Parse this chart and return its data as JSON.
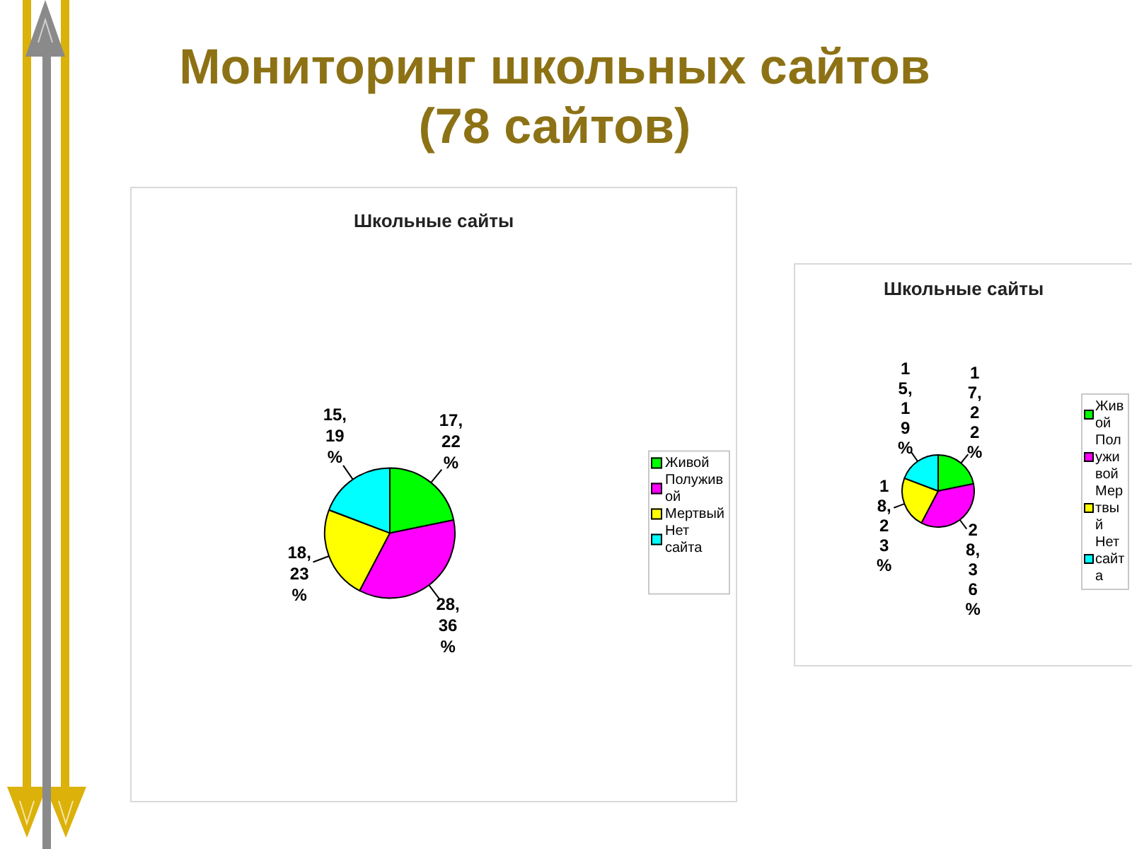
{
  "chart_data": [
    {
      "type": "other",
      "title": "Мониторинг школьных сайтов (78 сайтов)"
    },
    {
      "type": "pie",
      "title": "Школьные сайты",
      "categories": [
        "Живой",
        "Полуживой",
        "Мертвый",
        "Нет сайта"
      ],
      "values": [
        17,
        28,
        18,
        15
      ],
      "colors": [
        "#00ff00",
        "#ff00ff",
        "#ffff00",
        "#00ffff"
      ],
      "value_labels": [
        "17, 22 %",
        "28, 36 %",
        "18, 23 %",
        "15, 19 %"
      ],
      "legend": "right"
    },
    {
      "type": "pie",
      "title": "Школьные сайты",
      "categories": [
        "Живой",
        "Полуживой",
        "Мертвый",
        "Нет сайта"
      ],
      "values": [
        17,
        28,
        18,
        15
      ],
      "colors": [
        "#00ff00",
        "#ff00ff",
        "#ffff00",
        "#00ffff"
      ],
      "value_labels": [
        "17, 22 %",
        "28, 36 %",
        "18, 23 %",
        "15, 19 %"
      ],
      "legend": "right"
    }
  ]
}
